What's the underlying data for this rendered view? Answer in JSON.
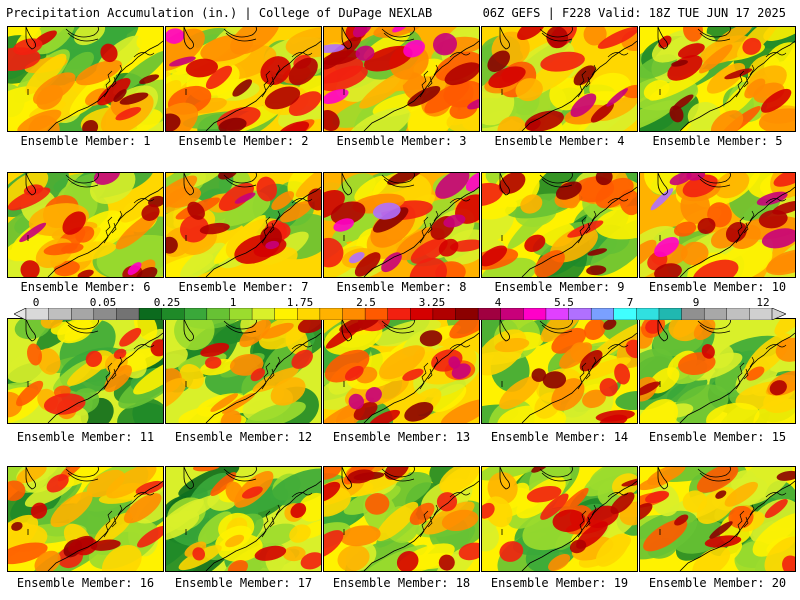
{
  "header": {
    "left": "Precipitation Accumulation (in.) | College of DuPage NEXLAB",
    "right": "06Z GEFS | F228 Valid: 18Z TUE JUN 17 2025"
  },
  "colorbar": {
    "labels": [
      "0",
      "0.05",
      "0.25",
      "1",
      "1.75",
      "2.5",
      "3.25",
      "4",
      "5.5",
      "7",
      "9",
      "12"
    ],
    "colors": [
      "#d9d9d9",
      "#bfbfbf",
      "#a6a6a6",
      "#8c8c8c",
      "#737373",
      "#0c6b1e",
      "#1f8a28",
      "#3aa83a",
      "#67c234",
      "#9bdc2e",
      "#d9f02a",
      "#fff200",
      "#ffd700",
      "#ffb200",
      "#ff8c00",
      "#ff5a00",
      "#f22010",
      "#d40000",
      "#b00000",
      "#8c0000",
      "#a00040",
      "#c8007a",
      "#ff00c8",
      "#e040ff",
      "#b070ff",
      "#7aa0ff",
      "#40ffff",
      "#30e0e0",
      "#20b8b0",
      "#909090",
      "#a8a8a8",
      "#c0c0c0",
      "#d0d0d0"
    ]
  },
  "caption_prefix": "Ensemble Member: ",
  "members": [
    {
      "id": "1",
      "intensity": 0.55
    },
    {
      "id": "2",
      "intensity": 0.7
    },
    {
      "id": "3",
      "intensity": 0.85
    },
    {
      "id": "4",
      "intensity": 0.6
    },
    {
      "id": "5",
      "intensity": 0.55
    },
    {
      "id": "6",
      "intensity": 0.65
    },
    {
      "id": "7",
      "intensity": 0.6
    },
    {
      "id": "8",
      "intensity": 0.9
    },
    {
      "id": "9",
      "intensity": 0.55
    },
    {
      "id": "10",
      "intensity": 0.75
    },
    {
      "id": "11",
      "intensity": 0.3
    },
    {
      "id": "12",
      "intensity": 0.35
    },
    {
      "id": "13",
      "intensity": 0.65
    },
    {
      "id": "14",
      "intensity": 0.55
    },
    {
      "id": "15",
      "intensity": 0.4
    },
    {
      "id": "16",
      "intensity": 0.55
    },
    {
      "id": "17",
      "intensity": 0.35
    },
    {
      "id": "18",
      "intensity": 0.5
    },
    {
      "id": "19",
      "intensity": 0.5
    },
    {
      "id": "20",
      "intensity": 0.55
    }
  ]
}
